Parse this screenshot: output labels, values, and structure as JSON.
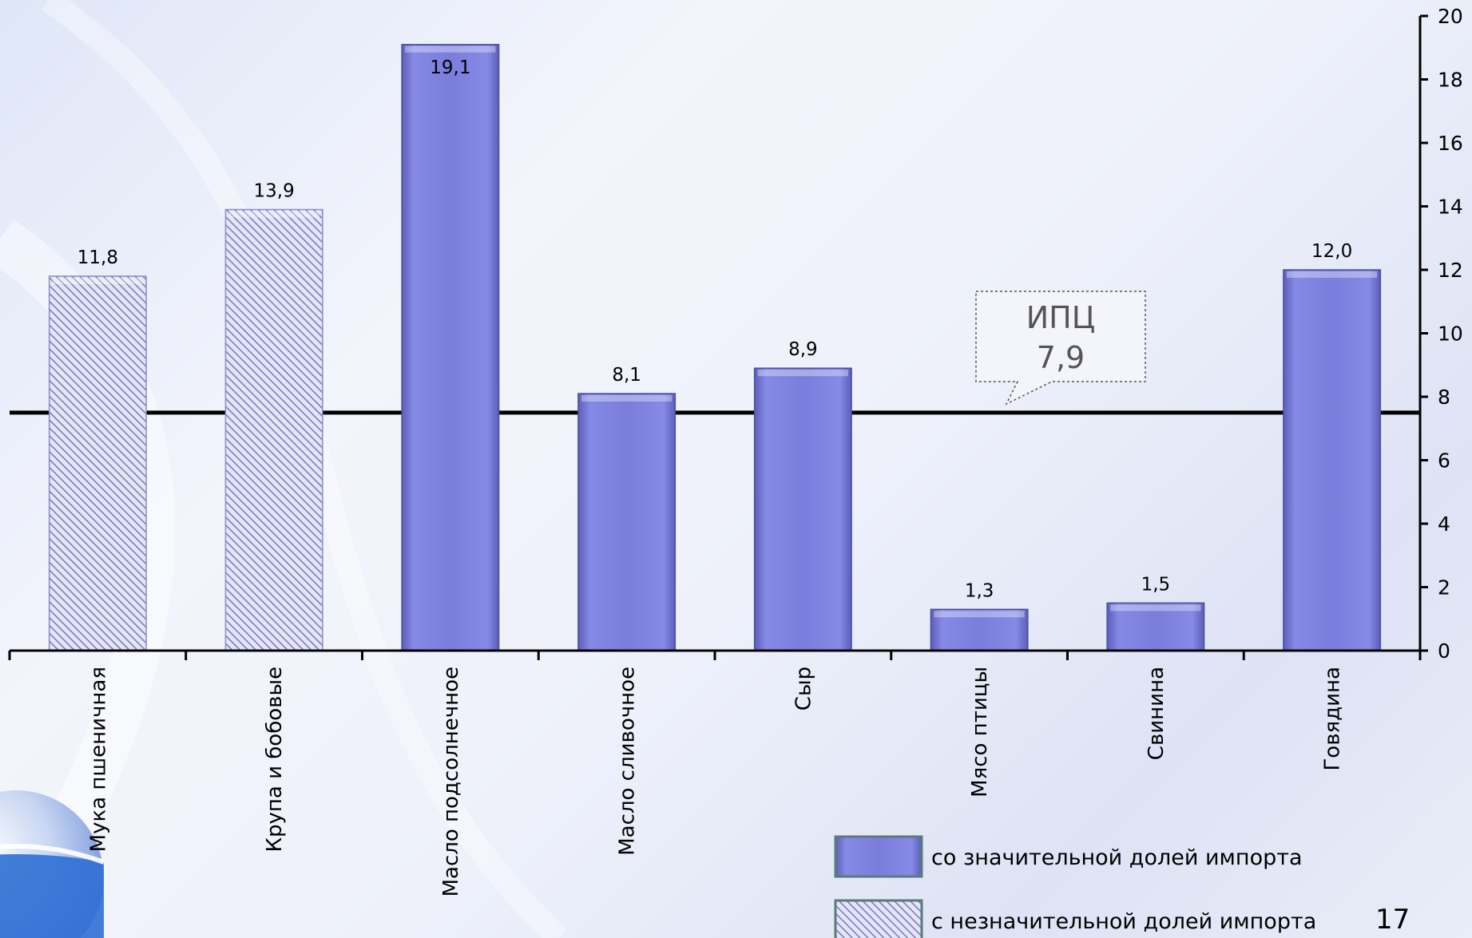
{
  "chart_data": {
    "type": "bar",
    "categories": [
      "Мука пшеничная",
      "Крупа и бобовые",
      "Масло подсолнечное",
      "Масло сливочное",
      "Сыр",
      "Мясо птицы",
      "Свинина",
      "Говядина"
    ],
    "values": [
      11.8,
      13.9,
      19.1,
      8.1,
      8.9,
      1.3,
      1.5,
      12.0
    ],
    "value_labels": [
      "11,8",
      "13,9",
      "19,1",
      "8,1",
      "8,9",
      "1,3",
      "1,5",
      "12,0"
    ],
    "series_group": [
      "insignificant",
      "insignificant",
      "significant",
      "significant",
      "significant",
      "significant",
      "significant",
      "significant"
    ],
    "ylim": [
      0,
      20
    ],
    "yticks": [
      0,
      2,
      4,
      6,
      8,
      10,
      12,
      14,
      16,
      18,
      20
    ],
    "y_axis_side": "right",
    "reference_line": {
      "label": "ИПЦ",
      "value": 7.9,
      "value_label": "7,9"
    },
    "legend": [
      {
        "key": "significant",
        "label": "со значительной долей импорта",
        "color": "#7b7edb"
      },
      {
        "key": "insignificant",
        "label": "с незначительной долей импорта",
        "color": "#c9cbea"
      }
    ],
    "legend_position": "bottom-right",
    "colors": {
      "significant": "#7b7edb",
      "insignificant_base": "#c9cbea",
      "hatch": "#6e72b8"
    }
  },
  "page_number": "17"
}
